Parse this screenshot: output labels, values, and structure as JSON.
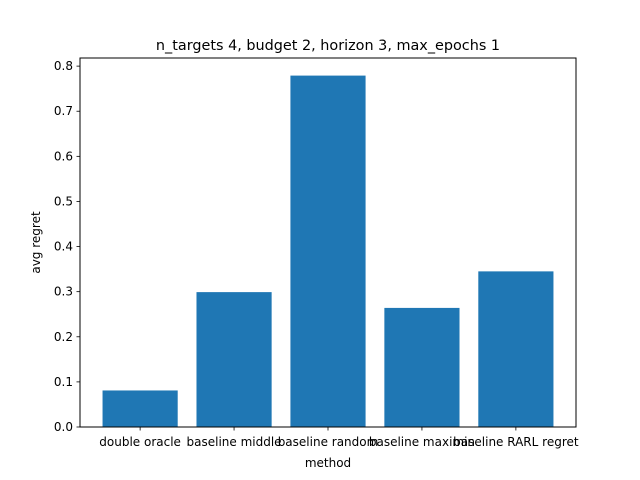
{
  "chart_data": {
    "type": "bar",
    "title": "n_targets 4, budget 2, horizon 3, max_epochs 1",
    "xlabel": "method",
    "ylabel": "avg regret",
    "categories": [
      "double oracle",
      "baseline middle",
      "baseline random",
      "baseline maximin",
      "baseline RARL regret"
    ],
    "values": [
      0.081,
      0.299,
      0.779,
      0.264,
      0.345
    ],
    "ylim": [
      0,
      0.818
    ],
    "yticks": [
      "0.0",
      "0.1",
      "0.2",
      "0.3",
      "0.4",
      "0.5",
      "0.6",
      "0.7",
      "0.8"
    ],
    "bar_color": "#1f77b4",
    "grid": false,
    "legend": "none"
  }
}
